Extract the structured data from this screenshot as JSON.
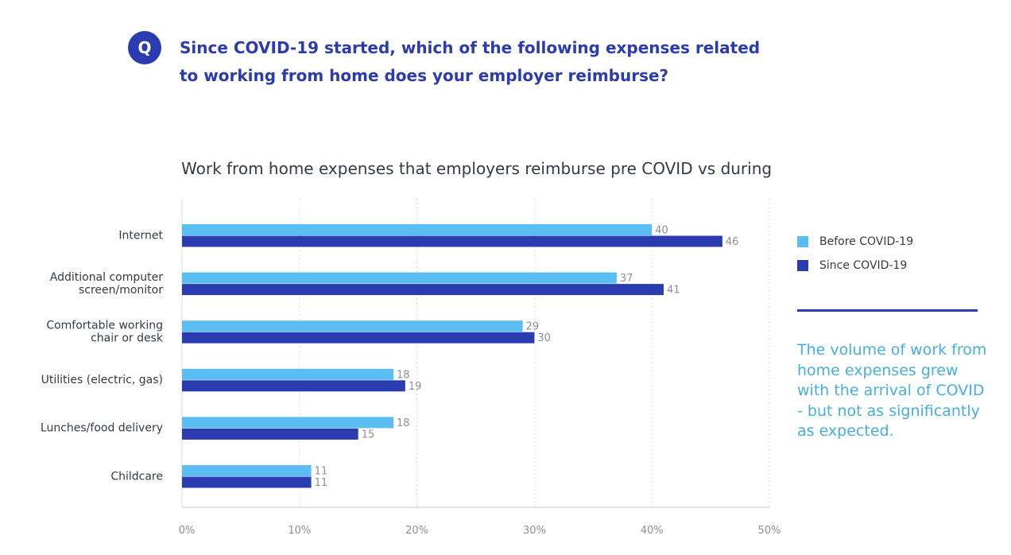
{
  "question": {
    "badge": "Q",
    "text": "Since COVID-19 started, which of the following expenses related to working from home does your employer reimburse?"
  },
  "insight": {
    "text": "The volume of work from home expenses grew with the arrival of COVID - but not as significantly as expected."
  },
  "colors": {
    "before": "#5bbef2",
    "since": "#2b3bb0",
    "accent": "#2b3bb0",
    "insight_text": "#47aee2"
  },
  "chart_data": {
    "type": "bar",
    "orientation": "horizontal",
    "title": "Work from home expenses that employers reimburse pre COVID vs during",
    "xlabel": "",
    "ylabel": "",
    "categories": [
      [
        "Internet"
      ],
      [
        "Additional computer",
        "screen/monitor"
      ],
      [
        "Comfortable working",
        "chair or desk"
      ],
      [
        "Utilities (electric, gas)"
      ],
      [
        "Lunches/food delivery"
      ],
      [
        "Childcare"
      ]
    ],
    "series": [
      {
        "name": "Before COVID-19",
        "values": [
          40,
          37,
          29,
          18,
          18,
          11
        ]
      },
      {
        "name": "Since COVID-19",
        "values": [
          46,
          41,
          30,
          19,
          15,
          11
        ]
      }
    ],
    "xlim": [
      0,
      50
    ],
    "ticks": [
      0,
      10,
      20,
      30,
      40,
      50
    ],
    "tick_labels": [
      "0%",
      "10%",
      "20%",
      "30%",
      "40%",
      "50%"
    ],
    "grid": true,
    "legend_position": "right"
  }
}
